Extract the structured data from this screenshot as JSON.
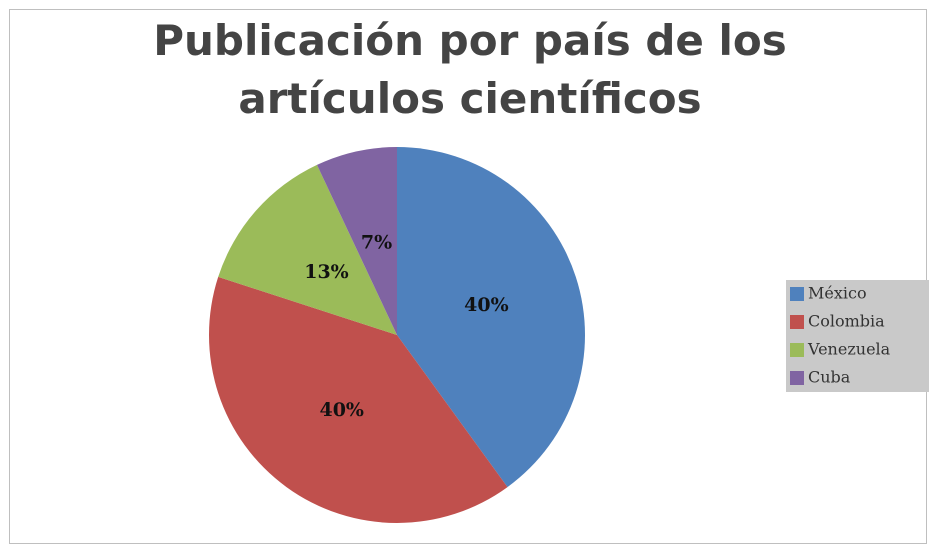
{
  "chart_data": {
    "type": "pie",
    "title": "Publicación por país de los artículos científicos",
    "categories": [
      "México",
      "Colombia",
      "Venezuela",
      "Cuba"
    ],
    "values": [
      40,
      40,
      13,
      7
    ],
    "value_labels": [
      "40%",
      "40%",
      "13%",
      "7%"
    ],
    "colors": [
      "#4f81bd",
      "#c0504d",
      "#9bbb59",
      "#8064a2"
    ],
    "legend": "right"
  }
}
